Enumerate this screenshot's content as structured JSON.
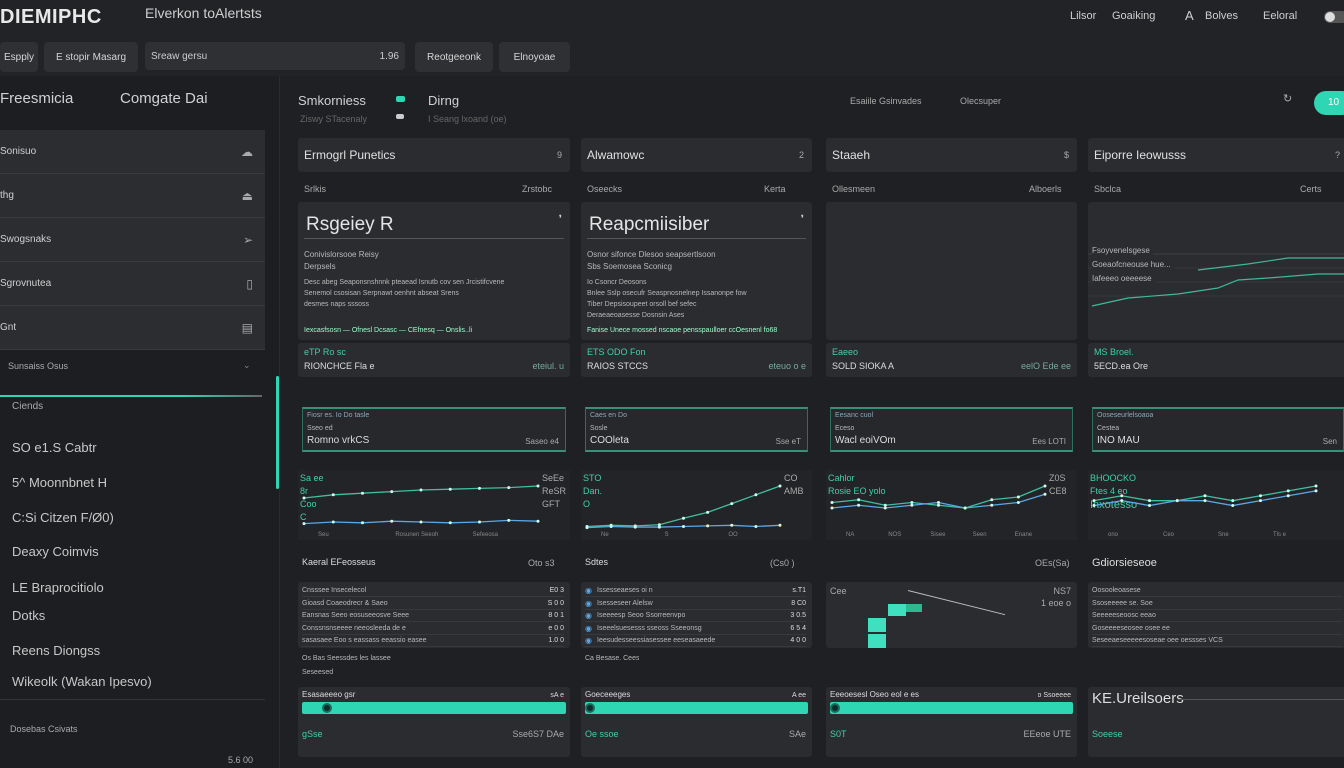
{
  "app": {
    "logo": "DIEMIPHC",
    "subtitle": "Elverkon toAlertsts"
  },
  "nav": [
    {
      "label": "Lilsor"
    },
    {
      "label": "Goaiking"
    },
    {
      "label": "A"
    },
    {
      "label": "Bolves"
    },
    {
      "label": "Eeloral"
    }
  ],
  "toolbar": {
    "btn1": "Espply",
    "btn2": "E stopir Masarg",
    "search_value": "Sreaw gersu",
    "search_hint": "1.96",
    "btn3": "Reotgeeonk",
    "btn4": "Elnoyoae"
  },
  "sidebar": {
    "title1": "Freesmicia",
    "title2": "Comgate Dai",
    "items": [
      {
        "label": "Sonisuo",
        "icon": "cloud-icon"
      },
      {
        "label": "thg",
        "icon": "upload-icon"
      },
      {
        "label": "Swogsnaks",
        "icon": "arrow-icon"
      },
      {
        "label": "Sgrovnutea",
        "icon": "file-icon"
      },
      {
        "label": "Gnt",
        "icon": "layout-icon"
      }
    ],
    "section": "Sunsaiss Osus",
    "section2": "Ciends",
    "list": [
      "SO  e1.S Cabtr",
      "5^  Moonnbnet H",
      "C:Si  Citzen F/Ø0)",
      "Deaxy  Coimvis",
      "LE  Braprocitiolo",
      "Dotks",
      "Reens  Diongss",
      "Wikeolk (Wakan Ipesvo)"
    ],
    "footer": "Dosebas Csivats",
    "footer_val": "5.6 00",
    "scroll_position": 0.2
  },
  "header": {
    "title": "Smkorniess",
    "sub": "Ziswy  STacenaly",
    "title2": "Dirng",
    "sub2": "I Seang lxoand (oe)",
    "link1": "Esaiile Gsinvades",
    "link2": "Olecsuper",
    "action": "10",
    "accent": "#2fd6b4"
  },
  "cards": [
    {
      "title": "Ermogrl Punetics",
      "count": "9",
      "label": "Srlkis",
      "label_r": "Zrstobc",
      "big": "Rsgeiey R",
      "teal1": "Conivislorsooe Reisy",
      "teal2": "Derpsels",
      "lines": [
        "Desc abeg Seaponsnshnnk  pteaead  Isnutb  cov  sen  Jrcistifcvene",
        "Senemol csosisan Serpnawt oenhnt  abseat  Srens",
        "desmes naps sssoss"
      ],
      "flow": [
        "Iexcasfsosn",
        "Ofnesl Dcsasc",
        "CEfnesq",
        "Onslis..li"
      ],
      "foot1": "eTP Ro sc",
      "foot2": "RIONCHCE Fla e",
      "foot_r": "eteiul. u"
    },
    {
      "title": "Alwamowc",
      "count": "2",
      "label": "Oseecks",
      "label_r": "Kerta",
      "big": "Reapcmiisiber",
      "teal1": "Osnor sifonce  Dlesoo seapsertlsoon",
      "teal2": "Sbs Soemosea Sconicg",
      "lines": [
        "Io  Csoncr Deosons",
        "Bnlee Sslp  osecufr Seaspnosnelnep  Issanonpe fow",
        "Tiber  Depsisoupeet  orsoll bef sefec",
        "Deraeaeoasesse Dosnsin Ases"
      ],
      "flow": [
        "Fanise Unece mossed  nscaoe  pensspaulloer  ccOesnenl  fo68"
      ],
      "foot1": "ETS ODO Fon",
      "foot2": "RAIOS STCCS",
      "foot_r": "eteuo o e"
    },
    {
      "title": "Staaeh",
      "count": "$",
      "label": "Ollesmeen",
      "label_r": "Alboerls",
      "foot1": "Eaeeo",
      "foot2": "SOLD SIOKA A",
      "foot_r": "eelO Ede ee"
    },
    {
      "title": "Eiporre Ieowusss",
      "count": "?",
      "label": "Sbclca",
      "label_r": "Certs",
      "leg": [
        "Fsoyvenelsgese",
        "Goeaofcneouse hue...",
        "Iafeeeo oeeeese"
      ],
      "foot1": "MS Broel.",
      "foot2": "5ECD.ea Ore"
    }
  ],
  "stats": [
    {
      "top": "Fiosr es. Io Do tasle",
      "label": "Sseo ed",
      "value": "Romno vrkCS",
      "right": "Saseo e4"
    },
    {
      "top": "Caes en Do",
      "label": "Sosle",
      "value": "COOleta",
      "right": "Sse eT"
    },
    {
      "top": "Eesanc cuol",
      "label": "Eceso",
      "value": "Wacl eoiVOm",
      "right": "Ees LOTI"
    },
    {
      "top": "Ooseseurlelsoaoa",
      "label": "Cestea",
      "value": "INO MAU",
      "right": "Sen"
    }
  ],
  "charts": [
    {
      "type": "line",
      "labels": [
        "Sa ee",
        "8r",
        "Coo",
        "C"
      ],
      "right": [
        "SeEe",
        "ReSR",
        "GFT"
      ],
      "x": [
        "Seu",
        "Rosunen Seeoh",
        "Sefeeosa"
      ],
      "series": [
        [
          40,
          44,
          46,
          48,
          50,
          51,
          52,
          53,
          55
        ],
        [
          8,
          10,
          9,
          11,
          10,
          9,
          10,
          12,
          11
        ]
      ]
    },
    {
      "type": "line",
      "labels": [
        "STO",
        "Dan.",
        "O"
      ],
      "right": [
        "CO",
        "AMB"
      ],
      "x": [
        "Ne",
        "S",
        "OO"
      ],
      "series": [
        [
          6,
          8,
          7,
          9,
          20,
          30,
          45,
          60,
          75
        ],
        [
          4,
          6,
          5,
          5,
          6,
          7,
          8,
          6,
          8
        ]
      ]
    },
    {
      "type": "line",
      "labels": [
        "Cahlor",
        "Rosie EO yolo"
      ],
      "right": [
        "Z0S",
        "CE8"
      ],
      "x": [
        "NA",
        "NOS",
        "Sisee",
        "Seen",
        "Enane"
      ],
      "series": [
        [
          10,
          11,
          9,
          10,
          9,
          8,
          11,
          12,
          16
        ],
        [
          8,
          9,
          8,
          9,
          10,
          8,
          9,
          10,
          13
        ]
      ]
    },
    {
      "type": "line",
      "labels": [
        "BHOOCKO",
        "Ftes 4 eo",
        "Inxotesso"
      ],
      "right": [],
      "x": [
        "ono",
        "Ceo",
        "Sne",
        "Tls e"
      ],
      "series": [
        [
          6,
          7,
          6,
          6,
          7,
          6,
          7,
          8,
          9
        ],
        [
          5,
          6,
          5,
          6,
          6,
          5,
          6,
          7,
          8
        ]
      ]
    }
  ],
  "lists": [
    {
      "title": "Kaeral EFeosseus",
      "right": "Oto s3",
      "rows": [
        [
          "Cnsssee Insecelecol",
          "E0 3"
        ],
        [
          "Gioasd Coaeodrecr & Saeo",
          "S 0 0"
        ],
        [
          "Eansnas Seeo eosuseeosve Seee",
          "8 0 1"
        ],
        [
          "Conssnsnseeee neeosleeda de e",
          "e 0 0"
        ],
        [
          "sasasaee Eoo s eassass eeassio easee",
          "1.0 0"
        ]
      ],
      "note": "Os Bas Seessdes les lassee",
      "note2": "Seseesed"
    },
    {
      "title": "Sdtes",
      "right": "(Cs0 )",
      "rows": [
        [
          "Issesseaeses oi n",
          "s.T1"
        ],
        [
          "Isesseseer Alelsw",
          "8 C0"
        ],
        [
          "Iseeeesp Seoo  Ssorreenvpo",
          "3 0.5"
        ],
        [
          "Iseeelsuesesss sseoss Sseeonsg",
          "6 5 4"
        ],
        [
          "Ieesudesseessiasessee eeseasaeede",
          "4 0 0"
        ]
      ],
      "note": "Ca Besase. Cees"
    },
    {
      "title": "",
      "right": "OEs(Sa)",
      "chart_label": "Cee",
      "r1": "NS7",
      "r2": "1 eoe o"
    },
    {
      "title": "Gdiorsieseoe",
      "right": "",
      "rows": [
        [
          "Oosooleoasese",
          ""
        ],
        [
          "Ssoseeeee se. Soe",
          ""
        ],
        [
          "Seeeeeseoosc eeao",
          ""
        ],
        [
          "Goseeeeseosee  osee  ee",
          ""
        ],
        [
          "Seseeaeseeeeesoseae  oee  oessses VCS",
          ""
        ]
      ]
    }
  ],
  "progress": [
    {
      "label": "Esasaeeeo gsr",
      "right": "sA e",
      "value": 1.0,
      "foot": "gSse",
      "foot_r": "Sse6S7 DAe"
    },
    {
      "label": "Goeceeeges",
      "right": "A ee",
      "value": 1.0,
      "foot": "Oe  ssoe",
      "foot_r": "SAe"
    },
    {
      "label": "Eeeoesesl Oseo  eol e es",
      "right": "o Ssoeeee",
      "value": 1.0,
      "foot": "S0T",
      "foot_r": "EEeoe UTE"
    },
    {
      "label": "KE.Ureilsoers",
      "right": "",
      "value": 0,
      "foot": "Soeese",
      "foot_r": ""
    }
  ]
}
